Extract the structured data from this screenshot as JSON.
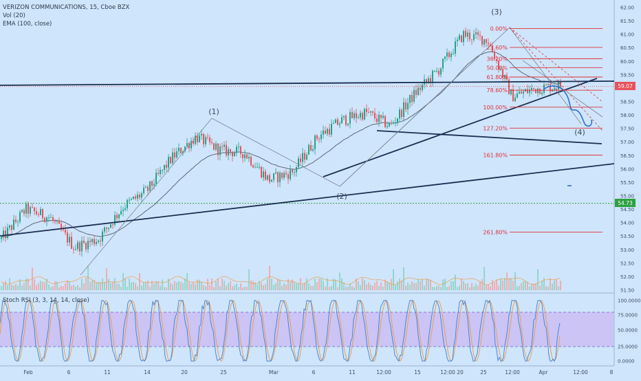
{
  "header": {
    "symbol_line": "VERIZON COMMUNICATIONS, 15, Cboe BZX",
    "vol_line": "Vol (20)",
    "ema_line": "EMA (100, close)"
  },
  "stoch": {
    "label": "Stoch RSI (3, 3, 14, 14, close)",
    "overbought": 80,
    "oversold": 20
  },
  "price_badges": {
    "current": "59.07",
    "line": "54.73"
  },
  "colors": {
    "background": "#cfe5fb",
    "candle_up": "#22a38c",
    "candle_down": "#e8525a",
    "ema": "#4a5360",
    "trendline": "#1a2f52",
    "fib": "#e0303a",
    "current_price": "#e8525a",
    "dotted_level": "#2ea043",
    "stoch_k": "#3a7fd6",
    "stoch_d": "#f09a3c",
    "stoch_band": "#c9b8f3"
  },
  "chart_data": {
    "type": "candlestick",
    "title": "VERIZON COMMUNICATIONS, 15, Cboe BZX",
    "ylim": [
      51.4,
      62.1
    ],
    "y_ticks": [
      "62.00",
      "61.50",
      "61.00",
      "60.50",
      "60.00",
      "59.50",
      "59.00",
      "58.50",
      "58.00",
      "57.50",
      "57.00",
      "56.50",
      "56.00",
      "55.50",
      "55.00",
      "54.50",
      "54.00",
      "53.50",
      "53.00",
      "52.50",
      "52.00",
      "51.50"
    ],
    "x_ticks": [
      "Feb",
      "6",
      "11",
      "14",
      "20",
      "25",
      "Mar",
      "6",
      "11",
      "12:00",
      "15",
      "12:00",
      "20",
      "25",
      "12:00",
      "Apr",
      "12:00",
      "8"
    ],
    "price_path": [
      [
        53.4,
        54.7
      ],
      [
        54.5,
        55.0
      ],
      [
        54.2,
        54.0
      ],
      [
        53.1,
        53.2
      ],
      [
        53.4,
        53.9
      ],
      [
        54.6,
        54.4
      ],
      [
        55.2,
        55.5
      ],
      [
        56.4,
        56.8
      ],
      [
        57.2,
        56.9
      ],
      [
        56.7,
        56.8
      ],
      [
        56.6,
        56.7
      ],
      [
        55.6,
        55.5
      ],
      [
        55.9,
        56.4
      ],
      [
        57.2,
        57.4
      ],
      [
        57.8,
        58.0
      ],
      [
        58.1,
        57.3
      ],
      [
        57.6,
        57.8
      ],
      [
        58.8,
        58.5
      ],
      [
        59.7,
        60.1
      ],
      [
        61.0,
        61.2
      ],
      [
        60.8,
        59.9
      ],
      [
        58.7,
        58.6
      ],
      [
        59.0,
        59.2
      ],
      [
        59.1,
        58.7
      ]
    ],
    "fib_levels": [
      {
        "label": "0.00%",
        "value": 61.22
      },
      {
        "label": "23.60%",
        "value": 60.52
      },
      {
        "label": "38.20%",
        "value": 60.1
      },
      {
        "label": "50.00%",
        "value": 59.77
      },
      {
        "label": "61.80%",
        "value": 59.42
      },
      {
        "label": "78.60%",
        "value": 58.93
      },
      {
        "label": "100.00%",
        "value": 58.3
      },
      {
        "label": "127.20%",
        "value": 57.52
      },
      {
        "label": "161.80%",
        "value": 56.52
      },
      {
        "label": "261.80%",
        "value": 53.66
      }
    ],
    "wave_labels": [
      "(1)",
      "(2)",
      "(3)",
      "(4)"
    ],
    "current_price": 59.07,
    "dotted_level": 54.73,
    "stoch_ticks": [
      "100.0000",
      "75.0000",
      "50.0000",
      "25.0000",
      "0.0000"
    ]
  }
}
